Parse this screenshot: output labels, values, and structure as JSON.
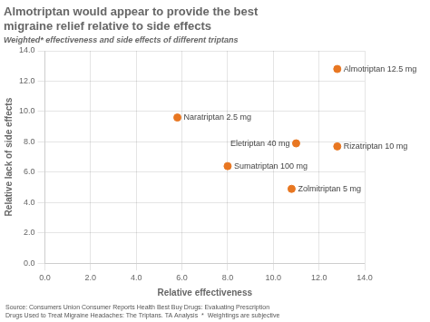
{
  "chart_data": {
    "type": "scatter",
    "title": "Almotriptan would appear to provide the best\nmigraine relief relative to side effects",
    "subtitle": "Weighted* effectiveness and side effects of different triptans",
    "x_label": "Relative effectiveness",
    "y_label": "Relative lack of side effects",
    "annotations": [
      "Source: Consumers Union Consumer Reports Health Best Buy Drugs: Evaluating Prescription\nDrugs Used to Treat Migraine Headaches: The Triptans. TA Analysis  *  Weightings are subjective"
    ],
    "x": [
      12.8,
      5.8,
      11.0,
      12.8,
      8.0,
      10.8
    ],
    "values": [
      12.8,
      9.6,
      7.9,
      7.7,
      6.4,
      4.9
    ],
    "point_labels": [
      "Almotriptan 12.5 mg",
      "Naratriptan 2.5 mg",
      "Eletriptan 40 mg",
      "Rizatriptan 10 mg",
      "Sumatriptan 100 mg",
      "Zolmitriptan 5 mg"
    ],
    "color": "#E87722",
    "xlim": [
      0,
      14
    ],
    "ylim": [
      0,
      14
    ],
    "xticks": [
      {
        "value": 0,
        "label": "0.0"
      },
      {
        "value": 2,
        "label": "2.0"
      },
      {
        "value": 4,
        "label": "4.0"
      },
      {
        "value": 6,
        "label": "6.0"
      },
      {
        "value": 8,
        "label": "8.0"
      },
      {
        "value": 10,
        "label": "10.0"
      },
      {
        "value": 12,
        "label": "12.0"
      },
      {
        "value": 14,
        "label": "14.0"
      }
    ],
    "yticks": [
      {
        "value": 0,
        "label": "0.0"
      },
      {
        "value": 2,
        "label": "2.0"
      },
      {
        "value": 4,
        "label": "4.0"
      },
      {
        "value": 6,
        "label": "6.0"
      },
      {
        "value": 8,
        "label": "8.0"
      },
      {
        "value": 10,
        "label": "10.0"
      },
      {
        "value": 12,
        "label": "12.0"
      },
      {
        "value": 14,
        "label": "14.0"
      }
    ],
    "grid": true
  }
}
